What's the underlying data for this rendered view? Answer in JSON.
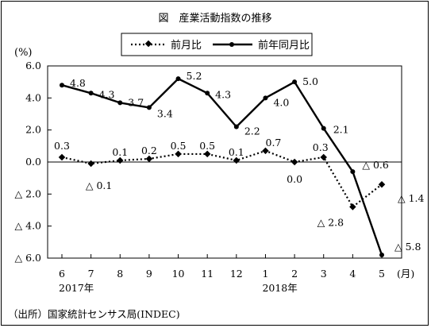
{
  "chart_data": {
    "type": "line",
    "title": "図　産業活動指数の推移",
    "ylabel": "(%)",
    "xunit": "(月)",
    "ylim": [
      -6.0,
      6.0
    ],
    "yticks": [
      {
        "value": 6.0,
        "label": "6.0"
      },
      {
        "value": 4.0,
        "label": "4.0"
      },
      {
        "value": 2.0,
        "label": "2.0"
      },
      {
        "value": 0.0,
        "label": "0.0"
      },
      {
        "value": -2.0,
        "label": "△ 2.0"
      },
      {
        "value": -4.0,
        "label": "△ 4.0"
      },
      {
        "value": -6.0,
        "label": "△ 6.0"
      }
    ],
    "categories": [
      "6",
      "7",
      "8",
      "9",
      "10",
      "11",
      "12",
      "1",
      "2",
      "3",
      "4",
      "5"
    ],
    "year_labels": [
      {
        "index": 0,
        "label": "2017年"
      },
      {
        "index": 7,
        "label": "2018年"
      }
    ],
    "series": [
      {
        "name": "前月比",
        "style": "dotted-diamond",
        "values": [
          0.3,
          -0.1,
          0.1,
          0.2,
          0.5,
          0.5,
          0.1,
          0.7,
          0.0,
          0.3,
          -2.8,
          -1.4
        ],
        "labels": [
          "0.3",
          "△ 0.1",
          "0.1",
          "0.2",
          "0.5",
          "0.5",
          "0.1",
          "0.7",
          "0.0",
          "0.3",
          "△ 2.8",
          "△ 1.4"
        ]
      },
      {
        "name": "前年同月比",
        "style": "solid-circle",
        "values": [
          4.8,
          4.3,
          3.7,
          3.4,
          5.2,
          4.3,
          2.2,
          4.0,
          5.0,
          2.1,
          -0.6,
          -5.8
        ],
        "labels": [
          "4.8",
          "4.3",
          "3.7",
          "3.4",
          "5.2",
          "4.3",
          "2.2",
          "4.0",
          "5.0",
          "2.1",
          "△ 0.6",
          "△ 5.8"
        ]
      }
    ],
    "legend_position": "top-center",
    "grid": false
  },
  "source": "（出所）国家統計センサス局(INDEC)"
}
